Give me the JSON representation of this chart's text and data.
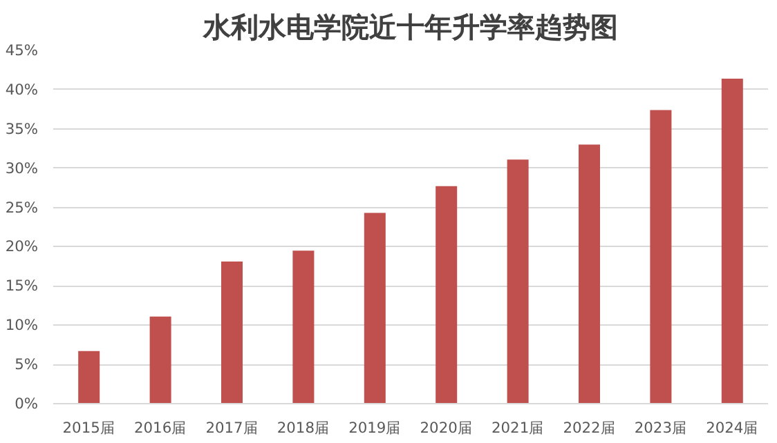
{
  "chart_data": {
    "type": "bar",
    "title": "水利水电学院近十年升学率趋势图",
    "categories": [
      "2015届",
      "2016届",
      "2017届",
      "2018届",
      "2019届",
      "2020届",
      "2021届",
      "2022届",
      "2023届",
      "2024届"
    ],
    "values": [
      6.7,
      11.1,
      18.1,
      19.5,
      24.3,
      27.7,
      31.1,
      33.0,
      37.4,
      41.4
    ],
    "color": "#c0504d",
    "ylim": [
      0,
      45
    ],
    "yticks": [
      {
        "value": 0,
        "label": "0%"
      },
      {
        "value": 5,
        "label": "5%"
      },
      {
        "value": 10,
        "label": "10%"
      },
      {
        "value": 15,
        "label": "15%"
      },
      {
        "value": 20,
        "label": "20%"
      },
      {
        "value": 25,
        "label": "25%"
      },
      {
        "value": 30,
        "label": "30%"
      },
      {
        "value": 35,
        "label": "35%"
      },
      {
        "value": 40,
        "label": "40%"
      },
      {
        "value": 45,
        "label": "45%"
      }
    ],
    "grid": "y"
  }
}
